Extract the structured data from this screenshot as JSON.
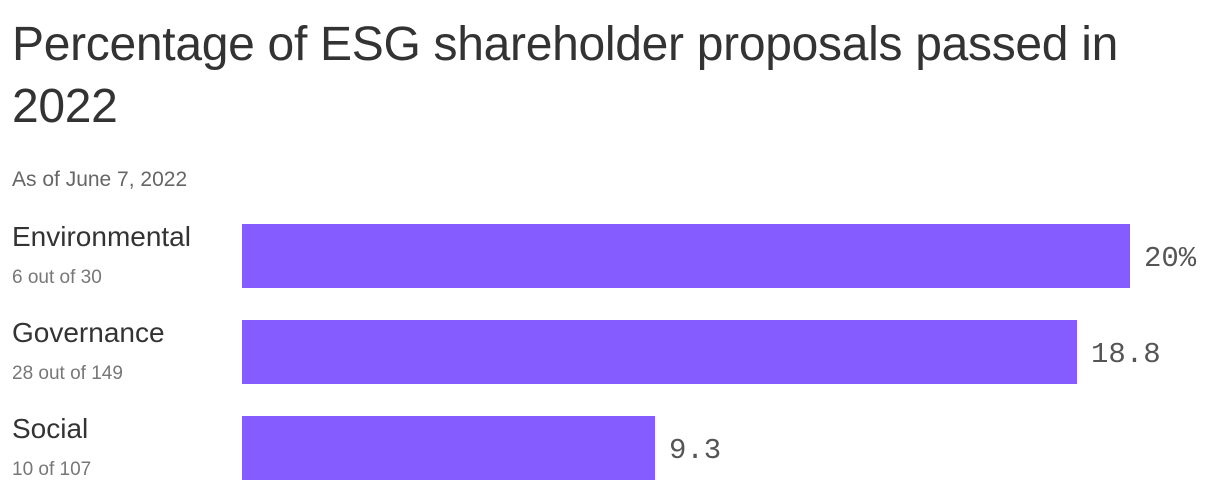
{
  "title": "Percentage of ESG shareholder proposals passed in 2022",
  "subtitle": "As of June 7, 2022",
  "colors": {
    "bar": "#845cff",
    "text": "#333333",
    "muted": "#777777"
  },
  "chart_data": {
    "type": "bar",
    "orientation": "horizontal",
    "title": "Percentage of ESG shareholder proposals passed in 2022",
    "subtitle": "As of June 7, 2022",
    "categories": [
      "Environmental",
      "Governance",
      "Social"
    ],
    "category_notes": [
      "6 out of 30",
      "28 out of 149",
      "10 of 107"
    ],
    "values": [
      20,
      18.8,
      9.3
    ],
    "value_labels": [
      "20%",
      "18.8",
      "9.3"
    ],
    "xlim": [
      0,
      20
    ],
    "grid": false,
    "legend": "none"
  }
}
